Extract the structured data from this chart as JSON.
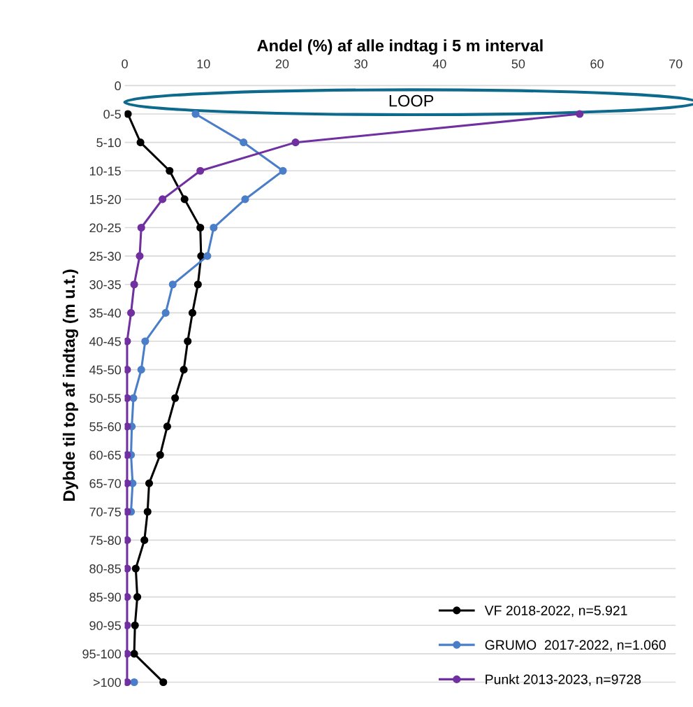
{
  "chart_data": {
    "type": "line",
    "orientation": "horizontal",
    "xlabel": "Andel (%) af alle indtag i 5 m interval",
    "ylabel": "Dybde til top af indtag (m u.t.)",
    "categories": [
      "0",
      "0-5",
      "5-10",
      "10-15",
      "15-20",
      "20-25",
      "25-30",
      "30-35",
      "35-40",
      "40-45",
      "45-50",
      "50-55",
      "55-60",
      "60-65",
      "65-70",
      "70-75",
      "75-80",
      "80-85",
      "85-90",
      "90-95",
      "95-100",
      ">100"
    ],
    "series": [
      {
        "name": "VF 2018-2022, n=5.921",
        "color": "#000000",
        "values": [
          null,
          0.4,
          2.0,
          5.7,
          7.6,
          9.6,
          9.7,
          9.3,
          8.6,
          8.0,
          7.5,
          6.4,
          5.4,
          4.5,
          3.1,
          2.9,
          2.5,
          1.4,
          1.6,
          1.3,
          1.2,
          4.9
        ]
      },
      {
        "name": "GRUMO  2017-2022, n=1.060",
        "color": "#4a7ec8",
        "values": [
          null,
          9.0,
          15.1,
          20.1,
          15.3,
          11.3,
          10.5,
          6.1,
          5.2,
          2.6,
          2.1,
          1.1,
          0.9,
          0.8,
          1.0,
          0.8,
          null,
          null,
          null,
          null,
          null,
          1.2
        ]
      },
      {
        "name": "Punkt 2013-2023, n=9728",
        "color": "#7030a0",
        "values": [
          null,
          57.8,
          21.7,
          9.6,
          4.8,
          2.1,
          1.9,
          1.2,
          0.8,
          0.3,
          0.3,
          0.3,
          0.3,
          0.3,
          0.3,
          0.3,
          0.3,
          0.3,
          0.3,
          0.3,
          0.3,
          0.3
        ]
      }
    ],
    "xlim": [
      0,
      70
    ],
    "xticks": [
      0,
      10,
      20,
      30,
      40,
      50,
      60,
      70
    ],
    "grid": "y",
    "legend": "bottom right",
    "marker": "circle",
    "line_style": "solid",
    "annotations": [
      "LOOP"
    ]
  }
}
